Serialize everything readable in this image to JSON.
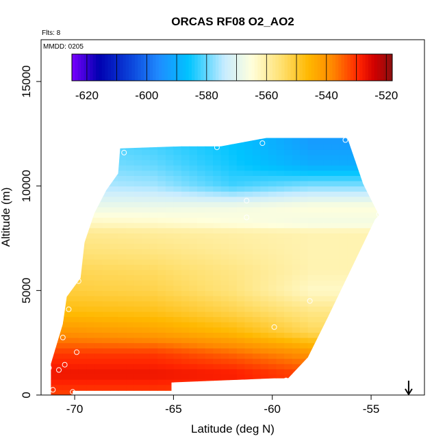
{
  "chart_data": {
    "type": "heatmap",
    "title": "ORCAS RF08 O2_AO2",
    "notes": {
      "flights": "Flts: 8",
      "date": "MMDD: 0205"
    },
    "xlabel": "Latitude (deg N)",
    "ylabel": "Altitude (m)",
    "xlim": [
      -71.7,
      -52.3
    ],
    "ylim": [
      0,
      17000
    ],
    "x_ticks": [
      -70,
      -65,
      -60,
      -55
    ],
    "y_ticks": [
      0,
      5000,
      10000,
      15000
    ],
    "grid": false,
    "colorbar": {
      "range": [
        -625,
        -518
      ],
      "ticks": [
        -620,
        -600,
        -580,
        -560,
        -540,
        -520
      ],
      "colors": [
        "#7a00ff",
        "#0000b0",
        "#0a3fd8",
        "#1f8bff",
        "#00c4ff",
        "#c8ecff",
        "#ffffdc",
        "#ffe070",
        "#ffb800",
        "#ff8800",
        "#ff2200",
        "#d00000",
        "#8a1010"
      ],
      "stops": [
        -625,
        -616,
        -606,
        -596,
        -586,
        -574,
        -565,
        -555,
        -546,
        -538,
        -529,
        -524,
        -518
      ]
    },
    "field": {
      "footprint_lat": [
        -71.2,
        -71.2,
        -70.6,
        -70.4,
        -69.7,
        -69.5,
        -69.0,
        -68.4,
        -67.8,
        -67.7,
        -64.6,
        -62.6,
        -60.3,
        -56.2,
        -55.4,
        -54.6,
        -54.8,
        -57.2,
        -58.2,
        -59.2,
        -59.9,
        -65.1,
        -65.1,
        -70.1,
        -70.1
      ],
      "footprint_alt": [
        0,
        1500,
        3400,
        4700,
        5600,
        7300,
        8700,
        9800,
        10600,
        11800,
        11900,
        11900,
        12300,
        12300,
        10100,
        8600,
        8400,
        3700,
        1800,
        800,
        800,
        600,
        200,
        200,
        0
      ],
      "sample_lat": [
        -70.8,
        -70.0,
        -66.0,
        -62.0,
        -58.0,
        -55.0
      ],
      "sample_alt": [
        0,
        1000,
        2000,
        3000,
        4000,
        5000,
        6000,
        7000,
        7800,
        8200,
        9000,
        10000,
        11000,
        12000
      ],
      "values": [
        [
          -532,
          -532,
          -532,
          -533,
          -535,
          -535
        ],
        [
          -527,
          -527,
          -527,
          -528,
          -532,
          -532
        ],
        [
          -531,
          -531,
          -531,
          -535,
          -540,
          -540
        ],
        [
          -540,
          -540,
          -542,
          -546,
          -553,
          -553
        ],
        [
          -547,
          -547,
          -548,
          -552,
          -557,
          -557
        ],
        [
          -551,
          -551,
          -552,
          -556,
          -563,
          -563
        ],
        [
          -553,
          -553,
          -554,
          -557,
          -561,
          -561
        ],
        [
          -556,
          -556,
          -557,
          -559,
          -561,
          -561
        ],
        [
          -558,
          -558,
          -559,
          -560,
          -561,
          -561
        ],
        [
          -562,
          -562,
          -563,
          -565,
          -567,
          -567
        ],
        [
          -568,
          -568,
          -568,
          -567,
          -565,
          -565
        ],
        [
          -575,
          -575,
          -576,
          -582,
          -578,
          -578
        ],
        [
          -578,
          -578,
          -580,
          -585,
          -590,
          -590
        ],
        [
          -580,
          -580,
          -582,
          -586,
          -593,
          -593
        ]
      ]
    },
    "sample_points": [
      {
        "lat": -71.3,
        "alt": 1300
      },
      {
        "lat": -70.8,
        "alt": 1200
      },
      {
        "lat": -70.5,
        "alt": 1450
      },
      {
        "lat": -70.6,
        "alt": 2750
      },
      {
        "lat": -69.9,
        "alt": 2050
      },
      {
        "lat": -71.1,
        "alt": 250
      },
      {
        "lat": -70.1,
        "alt": 150
      },
      {
        "lat": -69.8,
        "alt": 5450
      },
      {
        "lat": -70.3,
        "alt": 4100
      },
      {
        "lat": -67.5,
        "alt": 11600
      },
      {
        "lat": -62.8,
        "alt": 11850
      },
      {
        "lat": -60.5,
        "alt": 12050
      },
      {
        "lat": -56.3,
        "alt": 12200
      },
      {
        "lat": -61.3,
        "alt": 9300
      },
      {
        "lat": -61.3,
        "alt": 8500
      },
      {
        "lat": -54.6,
        "alt": 8650
      },
      {
        "lat": -57.3,
        "alt": 2200
      },
      {
        "lat": -59.9,
        "alt": 3250
      },
      {
        "lat": -59.3,
        "alt": 700
      },
      {
        "lat": -58.1,
        "alt": 4500
      }
    ],
    "marker": {
      "symbol": "down-arrow",
      "lat": -53.1
    }
  }
}
